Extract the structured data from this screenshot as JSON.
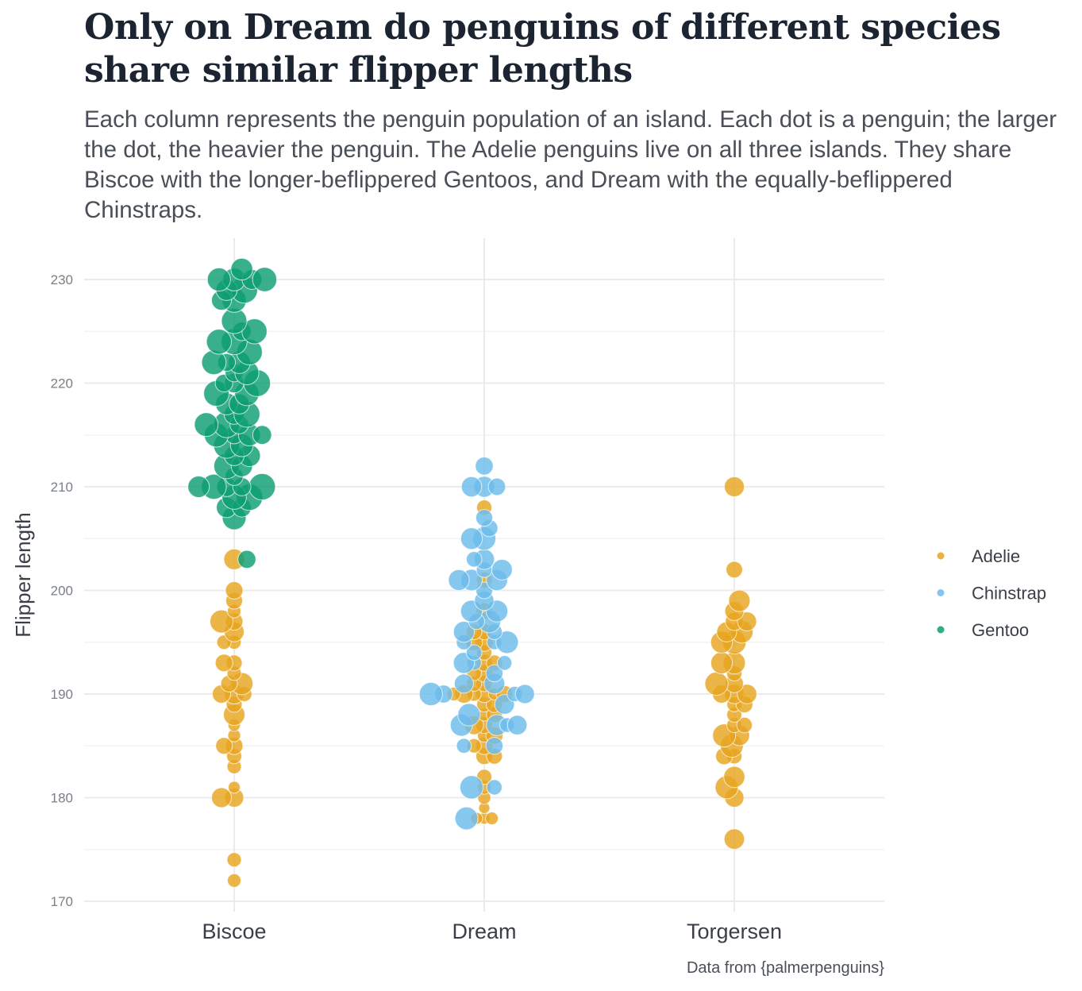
{
  "chart_data": {
    "type": "scatter",
    "title": "Only on Dream do penguins of different species share similar flipper lengths",
    "subtitle": "Each column represents the penguin population of an island. Each dot is a penguin; the larger the dot, the heavier the penguin. The Adelie penguins live on all three islands. They share Biscoe with the longer-beflippered Gentoos, and Dream with the equally-beflippered Chinstraps.",
    "xlabel": "",
    "ylabel": "Flipper length",
    "caption": "Data from {palmerpenguins}",
    "categories": [
      "Biscoe",
      "Dream",
      "Torgersen"
    ],
    "ylim": [
      170,
      232
    ],
    "yticks": [
      170,
      180,
      190,
      200,
      210,
      220,
      230
    ],
    "grid": true,
    "legend": "right",
    "colors": {
      "Adelie": "#e6a51e",
      "Chinstrap": "#6cbcec",
      "Gentoo": "#0e9e72"
    },
    "series": [
      {
        "name": "Adelie",
        "points": {
          "Biscoe": [
            172,
            174,
            180,
            180,
            181,
            183,
            184,
            185,
            185,
            186,
            187,
            188,
            189,
            190,
            190,
            190,
            191,
            191,
            192,
            193,
            193,
            195,
            195,
            196,
            197,
            197,
            198,
            199,
            200,
            203
          ],
          "Dream": [
            178,
            178,
            178,
            179,
            180,
            181,
            182,
            184,
            184,
            185,
            185,
            186,
            186,
            187,
            187,
            188,
            188,
            189,
            189,
            190,
            190,
            190,
            190,
            190,
            190,
            191,
            191,
            192,
            192,
            193,
            193,
            194,
            195,
            195,
            196,
            196,
            198,
            201,
            208
          ],
          "Torgersen": [
            176,
            180,
            181,
            182,
            184,
            184,
            185,
            186,
            186,
            187,
            187,
            188,
            189,
            189,
            190,
            190,
            190,
            191,
            191,
            192,
            193,
            193,
            195,
            195,
            196,
            196,
            197,
            197,
            198,
            199,
            202,
            210
          ]
        },
        "mass_g": {
          "Biscoe": [
            3500,
            3600,
            4200,
            4300,
            3300,
            3600,
            3700,
            4000,
            3900,
            3400,
            3350,
            4500,
            3800,
            4300,
            3700,
            4100,
            4600,
            3900,
            3600,
            3800,
            4000,
            3550,
            3600,
            4300,
            4000,
            4700,
            3500,
            3900,
            4000,
            4400
          ],
          "Dream": [
            3250,
            3300,
            3400,
            3200,
            3450,
            3550,
            3700,
            3900,
            3800,
            4000,
            3600,
            3500,
            3950,
            3900,
            4200,
            3400,
            3800,
            3700,
            3850,
            3950,
            3300,
            3600,
            4100,
            3900,
            3500,
            3800,
            3700,
            4000,
            3650,
            3900,
            3800,
            3700,
            4100,
            3900,
            3800,
            3750,
            3900,
            3800,
            3700
          ]
        }
      },
      {
        "name": "Chinstrap",
        "points": {
          "Dream": [
            178,
            181,
            181,
            185,
            185,
            187,
            187,
            187,
            187,
            188,
            189,
            190,
            190,
            190,
            190,
            191,
            191,
            192,
            193,
            193,
            193,
            194,
            195,
            195,
            195,
            196,
            196,
            197,
            197,
            198,
            198,
            199,
            200,
            201,
            201,
            201,
            202,
            202,
            203,
            203,
            205,
            205,
            206,
            207,
            210,
            210,
            210,
            212
          ]
        }
      },
      {
        "name": "Gentoo",
        "points": {
          "Biscoe": [
            203,
            207,
            208,
            208,
            209,
            209,
            210,
            210,
            210,
            210,
            210,
            211,
            212,
            212,
            213,
            213,
            214,
            214,
            215,
            215,
            215,
            215,
            216,
            216,
            216,
            217,
            217,
            218,
            218,
            219,
            219,
            220,
            220,
            220,
            221,
            221,
            222,
            222,
            222,
            223,
            224,
            224,
            225,
            225,
            226,
            228,
            228,
            229,
            229,
            230,
            230,
            230,
            230,
            231
          ]
        }
      }
    ]
  }
}
